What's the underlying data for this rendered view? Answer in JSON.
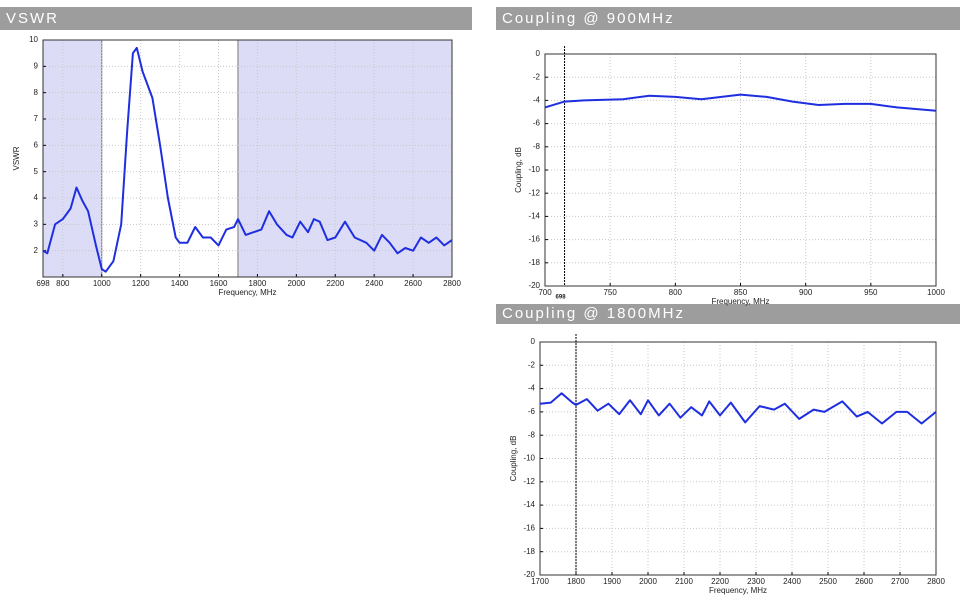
{
  "chart_data": [
    {
      "type": "line",
      "title": "VSWR",
      "x_label": "Frequency, MHz",
      "y_label": "VSWR",
      "xlim": [
        698,
        2800
      ],
      "ylim": [
        1,
        10
      ],
      "xticks": [
        698,
        800,
        1000,
        1200,
        1400,
        1600,
        1800,
        2000,
        2200,
        2400,
        2600,
        2800
      ],
      "yticks": [
        2,
        3,
        4,
        5,
        6,
        7,
        8,
        9,
        10
      ],
      "grid": true,
      "shaded_ranges": [
        [
          698,
          1000
        ],
        [
          1700,
          2800
        ]
      ],
      "shade_color": "#dcdcf7",
      "x": [
        698,
        720,
        760,
        800,
        840,
        870,
        900,
        930,
        970,
        1000,
        1020,
        1060,
        1100,
        1130,
        1160,
        1180,
        1210,
        1260,
        1300,
        1340,
        1380,
        1400,
        1440,
        1480,
        1520,
        1560,
        1600,
        1640,
        1680,
        1700,
        1740,
        1780,
        1820,
        1860,
        1900,
        1950,
        1980,
        2020,
        2060,
        2090,
        2120,
        2160,
        2200,
        2250,
        2300,
        2360,
        2400,
        2440,
        2480,
        2520,
        2560,
        2600,
        2640,
        2680,
        2720,
        2760,
        2800
      ],
      "series": [
        {
          "color": "#1f2fe0",
          "values": [
            2.0,
            1.9,
            3.0,
            3.2,
            3.6,
            4.4,
            3.9,
            3.5,
            2.2,
            1.3,
            1.2,
            1.6,
            3.0,
            6.5,
            9.5,
            9.7,
            8.8,
            7.8,
            6.0,
            4.0,
            2.5,
            2.3,
            2.3,
            2.9,
            2.5,
            2.5,
            2.2,
            2.8,
            2.9,
            3.2,
            2.6,
            2.7,
            2.8,
            3.5,
            3.0,
            2.6,
            2.5,
            3.1,
            2.7,
            3.2,
            3.1,
            2.4,
            2.5,
            3.1,
            2.5,
            2.3,
            2.0,
            2.6,
            2.3,
            1.9,
            2.1,
            2.0,
            2.5,
            2.3,
            2.5,
            2.2,
            2.4
          ]
        }
      ]
    },
    {
      "type": "line",
      "title": "Coupling @ 900MHz",
      "x_label": "Frequency, MHz",
      "y_label": "Coupling, dB",
      "xlim": [
        700,
        1000
      ],
      "ylim": [
        -20,
        0
      ],
      "xticks": [
        700,
        750,
        800,
        850,
        900,
        950,
        1000
      ],
      "yticks": [
        -20,
        -18,
        -16,
        -14,
        -12,
        -10,
        -8,
        -6,
        -4,
        -2,
        0
      ],
      "grid": true,
      "marker_x": 715,
      "marker_label": "698",
      "x": [
        700,
        715,
        730,
        760,
        780,
        800,
        820,
        850,
        870,
        890,
        910,
        930,
        950,
        970,
        1000
      ],
      "series": [
        {
          "color": "#1f2fe0",
          "values": [
            -4.6,
            -4.1,
            -4.0,
            -3.9,
            -3.6,
            -3.7,
            -3.9,
            -3.5,
            -3.7,
            -4.1,
            -4.4,
            -4.3,
            -4.3,
            -4.6,
            -4.9
          ]
        }
      ]
    },
    {
      "type": "line",
      "title": "Coupling @ 1800MHz",
      "x_label": "Frequency, MHz",
      "y_label": "Coupling, dB",
      "xlim": [
        1700,
        2800
      ],
      "ylim": [
        -20,
        0
      ],
      "xticks": [
        1700,
        1800,
        1900,
        2000,
        2100,
        2200,
        2300,
        2400,
        2500,
        2600,
        2700,
        2800
      ],
      "yticks": [
        -20,
        -18,
        -16,
        -14,
        -12,
        -10,
        -8,
        -6,
        -4,
        -2,
        0
      ],
      "grid": true,
      "marker_x": 1800,
      "x": [
        1700,
        1730,
        1760,
        1790,
        1800,
        1830,
        1860,
        1890,
        1920,
        1950,
        1980,
        2000,
        2030,
        2060,
        2090,
        2120,
        2150,
        2170,
        2200,
        2230,
        2270,
        2310,
        2350,
        2380,
        2420,
        2460,
        2490,
        2540,
        2580,
        2610,
        2650,
        2690,
        2720,
        2760,
        2800
      ],
      "series": [
        {
          "color": "#1f2fe0",
          "values": [
            -5.3,
            -5.2,
            -4.4,
            -5.2,
            -5.4,
            -4.9,
            -5.9,
            -5.3,
            -6.2,
            -5.0,
            -6.2,
            -5.0,
            -6.3,
            -5.3,
            -6.5,
            -5.6,
            -6.3,
            -5.1,
            -6.3,
            -5.2,
            -6.9,
            -5.5,
            -5.8,
            -5.3,
            -6.6,
            -5.8,
            -6.0,
            -5.1,
            -6.4,
            -6.0,
            -7.0,
            -6.0,
            -6.0,
            -7.0,
            -6.0
          ]
        }
      ]
    }
  ]
}
